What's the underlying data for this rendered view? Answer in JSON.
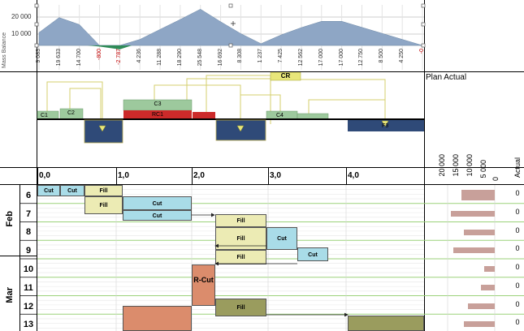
{
  "mass_balance": {
    "axis_label": "Mass Balance",
    "y_ticks": [
      "20 000",
      "10 000"
    ],
    "values": [
      "9 083",
      "19 633",
      "14 700",
      "-800",
      "-2 787",
      "4 236",
      "11 288",
      "18 290",
      "25 548",
      "16 692",
      "8 308",
      "1 237",
      "7 425",
      "12 562",
      "17 000",
      "17 000",
      "12 750",
      "8 500",
      "4 250",
      "-0"
    ]
  },
  "haul_diagram": {
    "cr_label": "CR",
    "segments": [
      {
        "label": "C1",
        "type": "cut"
      },
      {
        "label": "C2",
        "type": "cut"
      },
      {
        "label": "C3",
        "type": "cut"
      },
      {
        "label": "RC1",
        "type": "rcut"
      },
      {
        "label": "C4",
        "type": "cut"
      },
      {
        "label": "F3",
        "type": "fill"
      }
    ]
  },
  "x_axis": {
    "labels": [
      "0,0",
      "1,0",
      "2,0",
      "3,0",
      "4,0"
    ]
  },
  "right_panel": {
    "header": "Plan Actual",
    "ticks": [
      "20 000",
      "15 000",
      "10 000",
      "5 000",
      "0"
    ],
    "actual_label": "Actual",
    "actual_values": [
      "0",
      "0",
      "0",
      "0",
      "0",
      "0",
      "0",
      "0"
    ]
  },
  "schedule": {
    "months": [
      {
        "label": "Feb"
      },
      {
        "label": "Mar"
      }
    ],
    "days": [
      "6",
      "7",
      "8",
      "9",
      "10",
      "11",
      "12",
      "13"
    ],
    "activities": [
      {
        "label": "Cut"
      },
      {
        "label": "Cut"
      },
      {
        "label": "Fill"
      },
      {
        "label": "Fill"
      },
      {
        "label": "Cut"
      },
      {
        "label": "Cut"
      },
      {
        "label": "Fill"
      },
      {
        "label": "Fill"
      },
      {
        "label": "Cut"
      },
      {
        "label": "Fill"
      },
      {
        "label": "Cut"
      },
      {
        "label": "R-Cut"
      },
      {
        "label": "Fill"
      },
      {
        "label": ""
      },
      {
        "label": ""
      }
    ]
  },
  "colors": {
    "area": "#8ea6c5",
    "area_neg": "#2e8b57",
    "cut": "#a9dce8",
    "fill": "#ecebb4",
    "rcut": "#db8c6c",
    "fill_dark": "#9a9c5e",
    "haul_cut": "#9dc99d",
    "haul_rcut": "#cc2a2a",
    "haul_fill": "#2f4a78",
    "cr": "#e8e67a",
    "plan_bar": "#c8a09a"
  }
}
